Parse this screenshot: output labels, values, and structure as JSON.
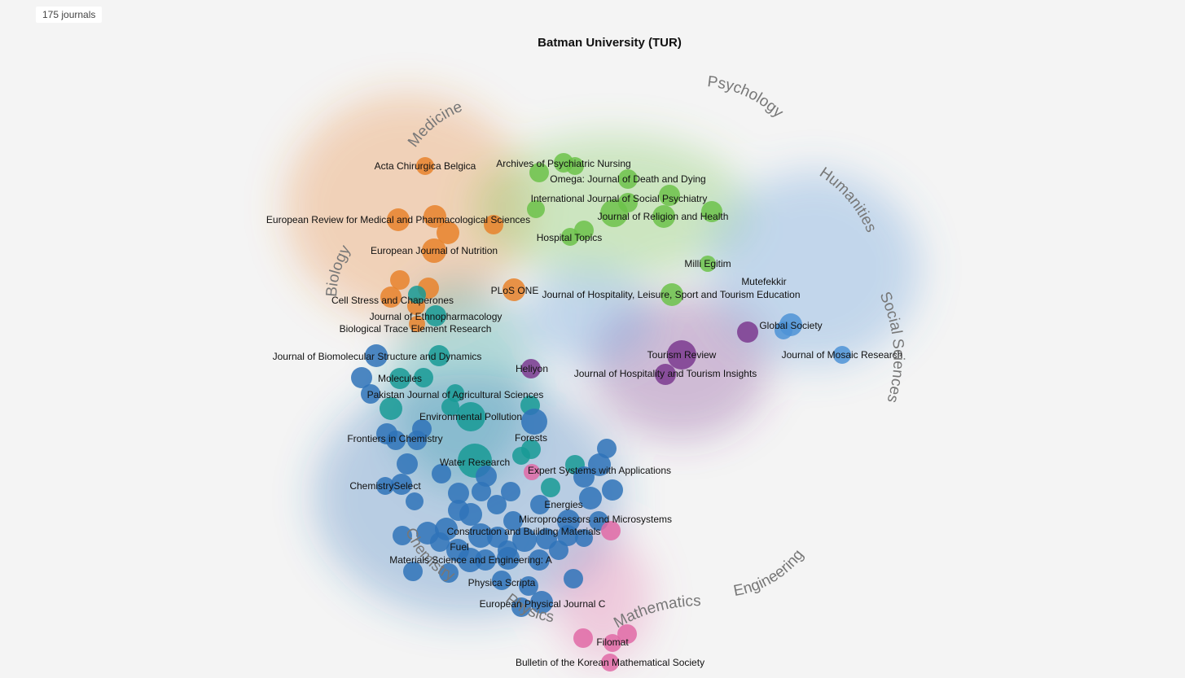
{
  "count_badge": "175 journals",
  "title": "Batman University (TUR)",
  "colors": {
    "medicine": "#e8822c",
    "psychology": "#6cc24a",
    "humanities": "#4e93d6",
    "social": "#7b3a8f",
    "biology": "#179a95",
    "chemistry": "#2f73b8",
    "math": "#e06aa6"
  },
  "fields": [
    {
      "text": "Medicine"
    },
    {
      "text": "Psychology"
    },
    {
      "text": "Humanities"
    },
    {
      "text": "Social Sciences"
    },
    {
      "text": "Biology"
    },
    {
      "text": "Chemistry"
    },
    {
      "text": "Physics"
    },
    {
      "text": "Mathematics"
    },
    {
      "text": "Engineering"
    }
  ],
  "chart_data": {
    "type": "scatter",
    "journals": [
      "Acta Chirurgica Belgica",
      "Archives of Psychiatric Nursing",
      "Omega: Journal of Death and Dying",
      "International Journal of Social Psychiatry",
      "European Review for Medical and Pharmacological Sciences",
      "Journal of Religion and Health",
      "Hospital Topics",
      "European Journal of Nutrition",
      "Milli Egitim",
      "Mutefekkir",
      "PLoS ONE",
      "Journal of Hospitality, Leisure, Sport and Tourism Education",
      "Cell Stress and Chaperones",
      "Journal of Ethnopharmacology",
      "Biological Trace Element Research",
      "Global Society",
      "Tourism Review",
      "Journal of Mosaic Research",
      "Journal of Biomolecular Structure and Dynamics",
      "Heliyon",
      "Journal of Hospitality and Tourism Insights",
      "Molecules",
      "Pakistan Journal of Agricultural Sciences",
      "Environmental Pollution",
      "Frontiers in Chemistry",
      "Forests",
      "Water Research",
      "Expert Systems with Applications",
      "ChemistrySelect",
      "Energies",
      "Microprocessors and Microsystems",
      "Construction and Building Materials",
      "Fuel",
      "Materials Science and Engineering: A",
      "Physica Scripta",
      "European Physical Journal C",
      "Filomat",
      "Bulletin of the Korean Mathematical Society"
    ]
  }
}
